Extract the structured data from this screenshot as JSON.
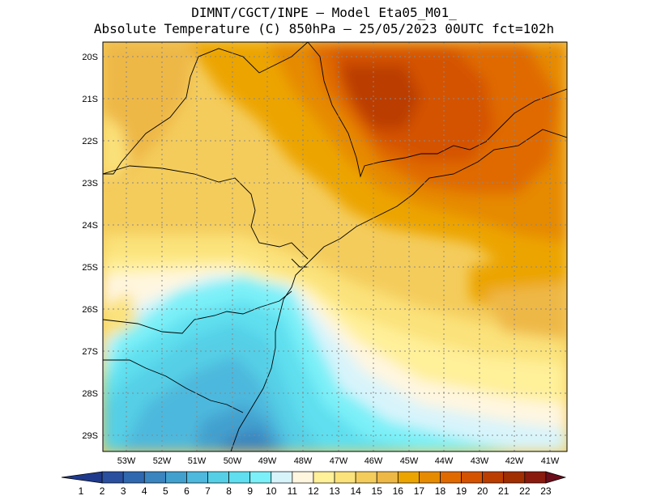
{
  "header": {
    "title_line1": "DIMNT/CGCT/INPE  –  Model Eta05_M01_",
    "title_line2": "Absolute Temperature (C) 850hPa –  25/05/2023 00UTC fct=102h"
  },
  "map": {
    "lat_labels": [
      "20S",
      "21S",
      "22S",
      "23S",
      "24S",
      "25S",
      "26S",
      "27S",
      "28S",
      "29S"
    ],
    "lon_labels": [
      "53W",
      "52W",
      "51W",
      "50W",
      "49W",
      "48W",
      "47W",
      "46W",
      "45W",
      "44W",
      "43W",
      "42W",
      "41W"
    ],
    "grid": "dotted"
  },
  "colorbar": {
    "labels": [
      "1",
      "2",
      "3",
      "4",
      "5",
      "6",
      "7",
      "8",
      "9",
      "10",
      "11",
      "12",
      "13",
      "14",
      "15",
      "16",
      "17",
      "18",
      "19",
      "20",
      "21",
      "22",
      "23"
    ],
    "colors": [
      "#1f3a8c",
      "#2a4f9f",
      "#3068b0",
      "#3a84c0",
      "#42a0cf",
      "#4eb8dd",
      "#55cfe6",
      "#5fdfef",
      "#7bf0f8",
      "#d8f4fb",
      "#fff6e0",
      "#fff09a",
      "#fbe27a",
      "#f4cc5c",
      "#eeb847",
      "#eca400",
      "#e68a00",
      "#e06a00",
      "#d45200",
      "#bb3d00",
      "#a02e00",
      "#8a1a0e",
      "#6b0d1a"
    ]
  }
}
